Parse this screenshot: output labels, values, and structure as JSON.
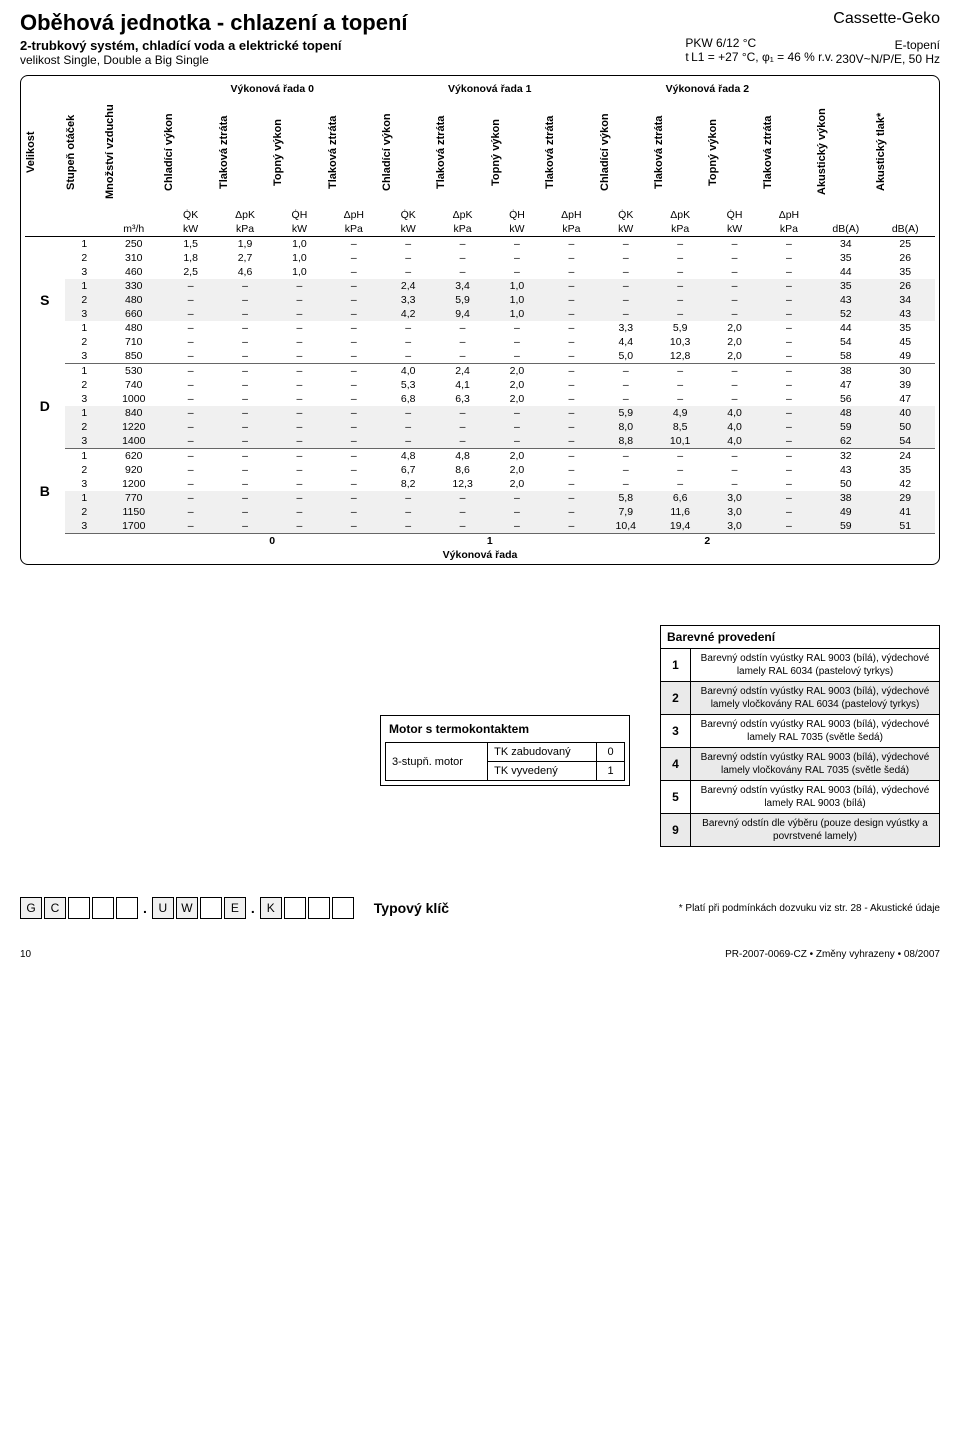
{
  "header": {
    "title": "Oběhová jednotka - chlazení a topení",
    "subtitle": "2-trubkový systém, chladící voda a elektrické topení",
    "subtitle2": "velikost Single, Double a Big Single",
    "mid1": "PKW 6/12 °C",
    "mid2": "t L1 = +27 °C, φ₁ = 46 % r.v.",
    "brand": "Cassette-Geko",
    "heat": "E-topení",
    "volt": "230V~N/P/E, 50 Hz"
  },
  "colgroups": [
    "Výkonová řada 0",
    "Výkonová řada 1",
    "Výkonová řada 2"
  ],
  "vheaders": [
    "Velikost",
    "Stupeň otáček",
    "Množství vzduchu",
    "Chladící výkon",
    "Tlaková ztráta",
    "Topný výkon",
    "Tlaková ztráta",
    "Chladící výkon",
    "Tlaková ztráta",
    "Topný výkon",
    "Tlaková ztráta",
    "Chladící výkon",
    "Tlaková ztráta",
    "Topný výkon",
    "Tlaková ztráta",
    "Akustický výkon",
    "Akustický tlak*"
  ],
  "symbols": [
    "",
    "",
    "",
    "Q̇K",
    "ΔpK",
    "Q̇H",
    "ΔpH",
    "Q̇K",
    "ΔpK",
    "Q̇H",
    "ΔpH",
    "Q̇K",
    "ΔpK",
    "Q̇H",
    "ΔpH",
    "",
    ""
  ],
  "units": [
    "",
    "",
    "m³/h",
    "kW",
    "kPa",
    "kW",
    "kPa",
    "kW",
    "kPa",
    "kW",
    "kPa",
    "kW",
    "kPa",
    "kW",
    "kPa",
    "dB(A)",
    "dB(A)"
  ],
  "data": {
    "S": [
      [
        "1",
        "250",
        "1,5",
        "1,9",
        "1,0",
        "–",
        "–",
        "–",
        "–",
        "–",
        "–",
        "–",
        "–",
        "–",
        "34",
        "25"
      ],
      [
        "2",
        "310",
        "1,8",
        "2,7",
        "1,0",
        "–",
        "–",
        "–",
        "–",
        "–",
        "–",
        "–",
        "–",
        "–",
        "35",
        "26"
      ],
      [
        "3",
        "460",
        "2,5",
        "4,6",
        "1,0",
        "–",
        "–",
        "–",
        "–",
        "–",
        "–",
        "–",
        "–",
        "–",
        "44",
        "35"
      ],
      [
        "1",
        "330",
        "–",
        "–",
        "–",
        "–",
        "2,4",
        "3,4",
        "1,0",
        "–",
        "–",
        "–",
        "–",
        "–",
        "35",
        "26"
      ],
      [
        "2",
        "480",
        "–",
        "–",
        "–",
        "–",
        "3,3",
        "5,9",
        "1,0",
        "–",
        "–",
        "–",
        "–",
        "–",
        "43",
        "34"
      ],
      [
        "3",
        "660",
        "–",
        "–",
        "–",
        "–",
        "4,2",
        "9,4",
        "1,0",
        "–",
        "–",
        "–",
        "–",
        "–",
        "52",
        "43"
      ],
      [
        "1",
        "480",
        "–",
        "–",
        "–",
        "–",
        "–",
        "–",
        "–",
        "–",
        "3,3",
        "5,9",
        "2,0",
        "–",
        "44",
        "35"
      ],
      [
        "2",
        "710",
        "–",
        "–",
        "–",
        "–",
        "–",
        "–",
        "–",
        "–",
        "4,4",
        "10,3",
        "2,0",
        "–",
        "54",
        "45"
      ],
      [
        "3",
        "850",
        "–",
        "–",
        "–",
        "–",
        "–",
        "–",
        "–",
        "–",
        "5,0",
        "12,8",
        "2,0",
        "–",
        "58",
        "49"
      ]
    ],
    "D": [
      [
        "1",
        "530",
        "–",
        "–",
        "–",
        "–",
        "4,0",
        "2,4",
        "2,0",
        "–",
        "–",
        "–",
        "–",
        "–",
        "38",
        "30"
      ],
      [
        "2",
        "740",
        "–",
        "–",
        "–",
        "–",
        "5,3",
        "4,1",
        "2,0",
        "–",
        "–",
        "–",
        "–",
        "–",
        "47",
        "39"
      ],
      [
        "3",
        "1000",
        "–",
        "–",
        "–",
        "–",
        "6,8",
        "6,3",
        "2,0",
        "–",
        "–",
        "–",
        "–",
        "–",
        "56",
        "47"
      ],
      [
        "1",
        "840",
        "–",
        "–",
        "–",
        "–",
        "–",
        "–",
        "–",
        "–",
        "5,9",
        "4,9",
        "4,0",
        "–",
        "48",
        "40"
      ],
      [
        "2",
        "1220",
        "–",
        "–",
        "–",
        "–",
        "–",
        "–",
        "–",
        "–",
        "8,0",
        "8,5",
        "4,0",
        "–",
        "59",
        "50"
      ],
      [
        "3",
        "1400",
        "–",
        "–",
        "–",
        "–",
        "–",
        "–",
        "–",
        "–",
        "8,8",
        "10,1",
        "4,0",
        "–",
        "62",
        "54"
      ]
    ],
    "B": [
      [
        "1",
        "620",
        "–",
        "–",
        "–",
        "–",
        "4,8",
        "4,8",
        "2,0",
        "–",
        "–",
        "–",
        "–",
        "–",
        "32",
        "24"
      ],
      [
        "2",
        "920",
        "–",
        "–",
        "–",
        "–",
        "6,7",
        "8,6",
        "2,0",
        "–",
        "–",
        "–",
        "–",
        "–",
        "43",
        "35"
      ],
      [
        "3",
        "1200",
        "–",
        "–",
        "–",
        "–",
        "8,2",
        "12,3",
        "2,0",
        "–",
        "–",
        "–",
        "–",
        "–",
        "50",
        "42"
      ],
      [
        "1",
        "770",
        "–",
        "–",
        "–",
        "–",
        "–",
        "–",
        "–",
        "–",
        "5,8",
        "6,6",
        "3,0",
        "–",
        "38",
        "29"
      ],
      [
        "2",
        "1150",
        "–",
        "–",
        "–",
        "–",
        "–",
        "–",
        "–",
        "–",
        "7,9",
        "11,6",
        "3,0",
        "–",
        "49",
        "41"
      ],
      [
        "3",
        "1700",
        "–",
        "–",
        "–",
        "–",
        "–",
        "–",
        "–",
        "–",
        "10,4",
        "19,4",
        "3,0",
        "–",
        "59",
        "51"
      ]
    ]
  },
  "footer_nums": [
    "0",
    "1",
    "2"
  ],
  "footer_label": "Výkonová řada",
  "motor": {
    "title": "Motor s termokontaktem",
    "row_label": "3-stupň. motor",
    "opts": [
      [
        "TK zabudovaný",
        "0"
      ],
      [
        "TK vyvedený",
        "1"
      ]
    ]
  },
  "colors": {
    "title": "Barevné provedení",
    "rows": [
      [
        "1",
        "Barevný odstín vyústky RAL 9003 (bílá), výdechové lamely RAL 6034 (pastelový tyrkys)"
      ],
      [
        "2",
        "Barevný odstín vyústky RAL 9003 (bílá), výdechové lamely vločkovány RAL 6034 (pastelový tyrkys)"
      ],
      [
        "3",
        "Barevný odstín vyústky RAL 9003 (bílá), výdechové lamely RAL 7035 (světle šedá)"
      ],
      [
        "4",
        "Barevný odstín vyústky RAL 9003 (bílá), výdechové lamely vločkovány RAL 7035 (světle šedá)"
      ],
      [
        "5",
        "Barevný odstín vyústky RAL 9003 (bílá), výdechové lamely RAL 9003 (bílá)"
      ],
      [
        "9",
        "Barevný odstín dle výběru (pouze design vyústky a povrstvené lamely)"
      ]
    ]
  },
  "key": {
    "letters": [
      "G",
      "C",
      "",
      "",
      "",
      ".",
      "U",
      "W",
      "",
      "E",
      ".",
      "K",
      "",
      "",
      ""
    ],
    "label": "Typový klíč",
    "footnote": "* Platí při podmínkách dozvuku viz str. 28 - Akustické údaje"
  },
  "page": {
    "num": "10",
    "ref": "PR-2007-0069-CZ • Změny vyhrazeny • 08/2007"
  }
}
